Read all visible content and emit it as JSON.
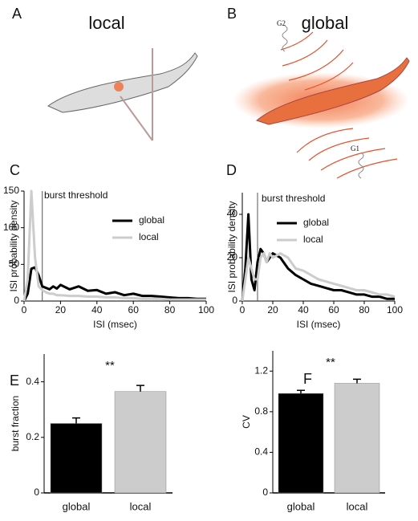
{
  "figure": {
    "panels": [
      {
        "label": "A",
        "title": "local"
      },
      {
        "label": "B",
        "title": "global",
        "annotations": [
          "G2",
          "G1"
        ]
      }
    ]
  },
  "chart_data": [
    {
      "type": "line",
      "panel_label": "C",
      "x_label": "ISI (msec)",
      "y_label": "ISI probability density",
      "x": [
        0,
        2,
        4,
        6,
        8,
        10,
        12,
        14,
        16,
        18,
        20,
        25,
        30,
        35,
        40,
        45,
        50,
        55,
        60,
        65,
        70,
        75,
        80,
        85,
        90,
        95,
        100
      ],
      "series": [
        {
          "name": "global",
          "color": "#000000",
          "values": [
            0,
            10,
            44,
            46,
            35,
            20,
            18,
            16,
            20,
            17,
            22,
            16,
            20,
            14,
            15,
            10,
            12,
            8,
            10,
            7,
            7,
            6,
            5,
            4,
            4,
            3,
            3
          ]
        },
        {
          "name": "local",
          "color": "#cccccc",
          "values": [
            0,
            30,
            150,
            60,
            20,
            15,
            12,
            10,
            10,
            8,
            8,
            7,
            7,
            6,
            6,
            5,
            5,
            4,
            4,
            3,
            3,
            3,
            2,
            2,
            2,
            2,
            2
          ]
        }
      ],
      "annotations": [
        {
          "text": "burst threshold",
          "x": 10
        }
      ],
      "xlim": [
        0,
        100
      ],
      "xticks": [
        0,
        20,
        40,
        60,
        80,
        100
      ],
      "ylim": [
        0,
        150
      ],
      "yticks": [
        0,
        50,
        100,
        150
      ],
      "legend": "upper right"
    },
    {
      "type": "line",
      "panel_label": "D",
      "x_label": "ISI (msec)",
      "y_label": "ISI probability density",
      "x": [
        0,
        2,
        4,
        6,
        8,
        10,
        12,
        14,
        16,
        18,
        20,
        25,
        30,
        35,
        40,
        45,
        50,
        55,
        60,
        65,
        70,
        75,
        80,
        85,
        90,
        95,
        100
      ],
      "series": [
        {
          "name": "global",
          "color": "#000000",
          "values": [
            0,
            15,
            40,
            10,
            5,
            18,
            24,
            22,
            18,
            20,
            22,
            20,
            15,
            12,
            10,
            8,
            7,
            6,
            5,
            5,
            4,
            3,
            3,
            2,
            2,
            1,
            1
          ]
        },
        {
          "name": "local",
          "color": "#cccccc",
          "values": [
            0,
            10,
            20,
            15,
            10,
            10,
            20,
            22,
            18,
            22,
            20,
            22,
            20,
            15,
            14,
            12,
            10,
            9,
            8,
            7,
            6,
            5,
            5,
            4,
            3,
            3,
            2
          ]
        }
      ],
      "annotations": [
        {
          "text": "burst threshold",
          "x": 10
        }
      ],
      "xlim": [
        0,
        100
      ],
      "xticks": [
        0,
        20,
        40,
        60,
        80,
        100
      ],
      "ylim": [
        0,
        50
      ],
      "yticks": [
        0,
        20,
        40
      ],
      "legend": "upper right"
    },
    {
      "type": "bar",
      "panel_label": "E",
      "y_label": "burst fraction",
      "annotation": "**",
      "categories": [
        "global",
        "local"
      ],
      "values": [
        0.25,
        0.365
      ],
      "errors": [
        0.02,
        0.022
      ],
      "colors": [
        "#000000",
        "#cccccc"
      ],
      "ylim": [
        0,
        0.5
      ],
      "yticks": [
        0,
        0.2,
        0.4
      ]
    },
    {
      "type": "bar",
      "panel_label": "F",
      "y_label": "CV",
      "annotation": "**",
      "categories": [
        "global",
        "local"
      ],
      "values": [
        0.98,
        1.08
      ],
      "errors": [
        0.03,
        0.04
      ],
      "colors": [
        "#000000",
        "#cccccc"
      ],
      "ylim": [
        0,
        1.4
      ],
      "yticks": [
        0,
        0.4,
        0.8,
        1.2
      ]
    }
  ]
}
